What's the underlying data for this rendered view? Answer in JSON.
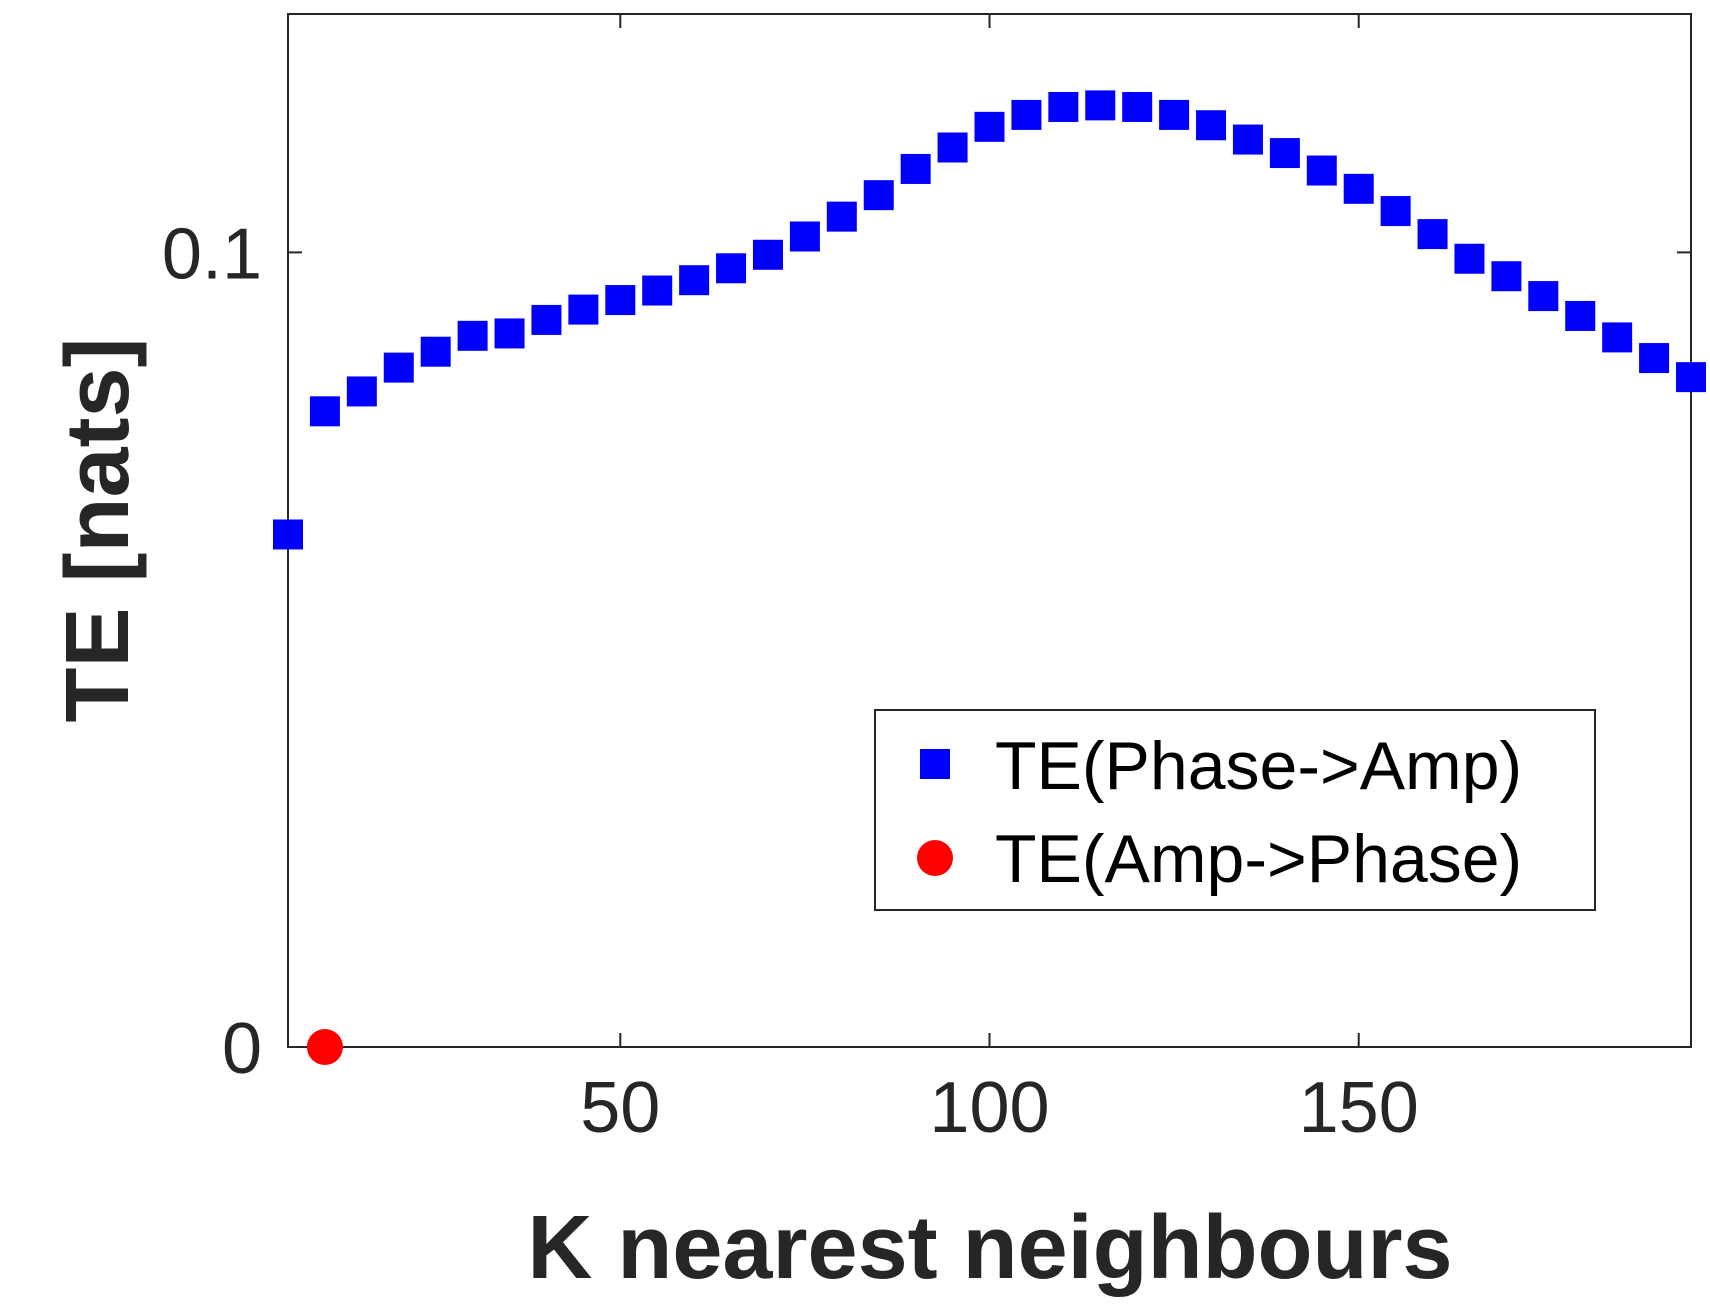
{
  "chart_data": {
    "type": "scatter",
    "title": "",
    "xlabel": "K nearest neighbours",
    "ylabel": "TE [nats]",
    "xlim": [
      5,
      195
    ],
    "ylim": [
      0,
      0.13
    ],
    "xticks": [
      50,
      100,
      150
    ],
    "xtick_labels": [
      "50",
      "100",
      "150"
    ],
    "yticks": [
      0,
      0.1
    ],
    "ytick_labels": [
      "0",
      "0.1"
    ],
    "grid": false,
    "legend_position": "lower-right",
    "series": [
      {
        "name": "TE(Phase->Amp)",
        "marker": "square",
        "color": "#0000ff",
        "x": [
          5,
          10,
          15,
          20,
          25,
          30,
          35,
          40,
          45,
          50,
          55,
          60,
          65,
          70,
          75,
          80,
          85,
          90,
          95,
          100,
          105,
          110,
          115,
          120,
          125,
          130,
          135,
          140,
          145,
          150,
          155,
          160,
          165,
          170,
          175,
          180,
          185,
          190,
          195
        ],
        "y": [
          0.0645,
          0.08,
          0.0825,
          0.0855,
          0.0875,
          0.0895,
          0.0898,
          0.0915,
          0.0928,
          0.094,
          0.0952,
          0.0965,
          0.098,
          0.0997,
          0.102,
          0.1045,
          0.1072,
          0.1105,
          0.1132,
          0.1158,
          0.1173,
          0.1183,
          0.1185,
          0.1183,
          0.1173,
          0.116,
          0.1142,
          0.1125,
          0.1103,
          0.108,
          0.1052,
          0.1023,
          0.0992,
          0.097,
          0.0945,
          0.092,
          0.0893,
          0.0867,
          0.0843
        ]
      },
      {
        "name": "TE(Amp->Phase)",
        "marker": "circle",
        "color": "#ff0000",
        "x": [
          10
        ],
        "y": [
          0
        ]
      }
    ]
  }
}
